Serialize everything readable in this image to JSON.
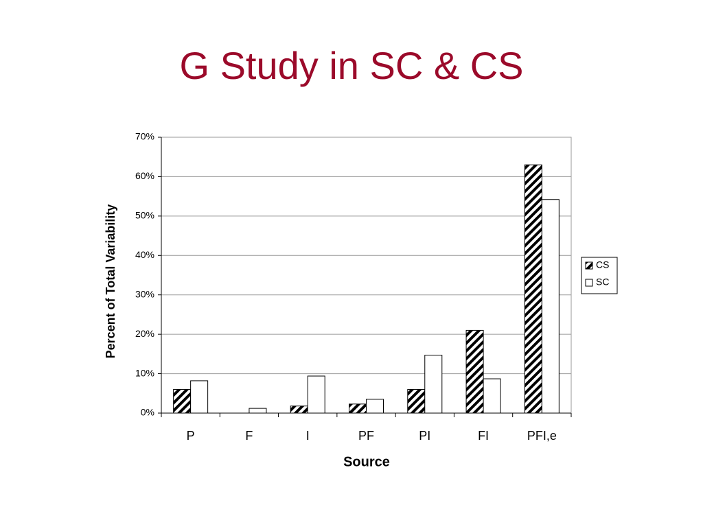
{
  "chart_data": {
    "type": "bar",
    "title": "G Study in SC & CS",
    "x_label": "Source",
    "y_label": "Percent of Total Variability",
    "categories": [
      "P",
      "F",
      "I",
      "PF",
      "PI",
      "FI",
      "PFI,e"
    ],
    "series": [
      {
        "name": "CS",
        "color": "#000000",
        "hatch": true,
        "values": [
          6,
          0,
          1.8,
          2.3,
          6,
          21,
          63
        ]
      },
      {
        "name": "SC",
        "color": "#ffffff",
        "hatch": false,
        "values": [
          8.2,
          1.2,
          9.4,
          3.5,
          14.7,
          8.7,
          54.2
        ]
      }
    ],
    "ylim": [
      0,
      70
    ],
    "yticks": [
      {
        "value": 0,
        "label": "0%"
      },
      {
        "value": 10,
        "label": "10%"
      },
      {
        "value": 20,
        "label": "20%"
      },
      {
        "value": 30,
        "label": "30%"
      },
      {
        "value": 40,
        "label": "40%"
      },
      {
        "value": 50,
        "label": "50%"
      },
      {
        "value": 60,
        "label": "60%"
      },
      {
        "value": 70,
        "label": "70%"
      }
    ],
    "grid": true,
    "legend": "right"
  }
}
